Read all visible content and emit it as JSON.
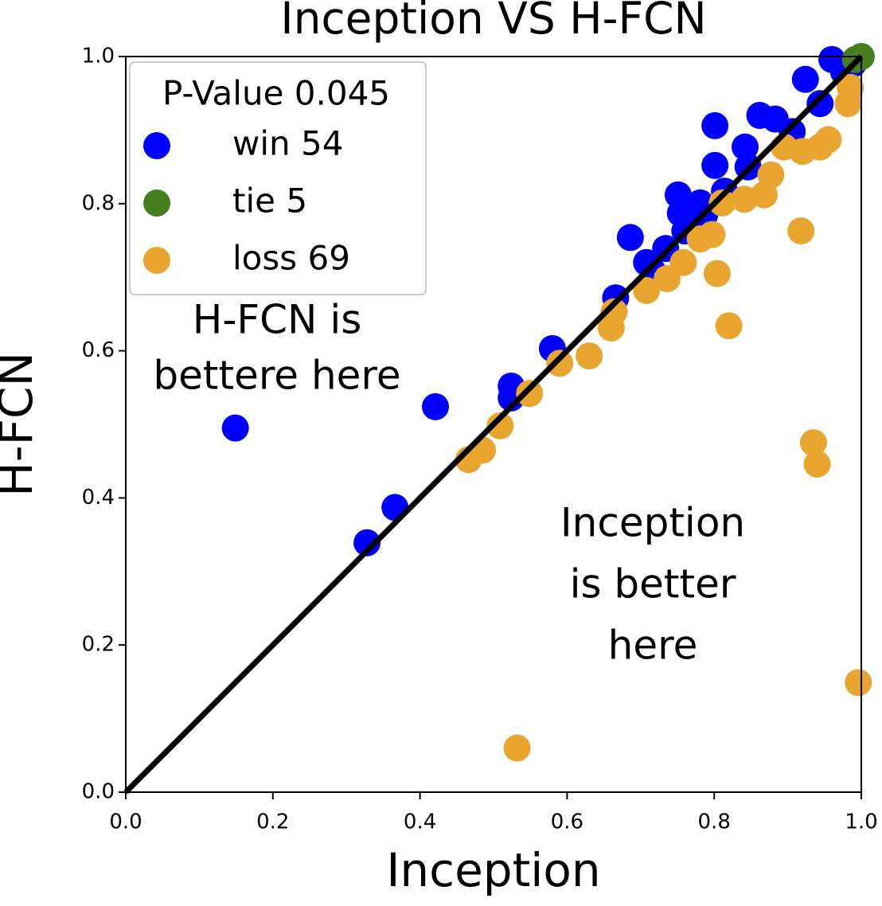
{
  "chart_data": {
    "type": "scatter",
    "title": "Inception VS H-FCN",
    "x_label": "Inception",
    "y_label": "H-FCN",
    "xlim": [
      0,
      1
    ],
    "ylim": [
      0,
      1
    ],
    "xticks": [
      {
        "value": 0,
        "label": "0.0"
      },
      0.2,
      0.4,
      0.6,
      0.8,
      {
        "value": 1,
        "label": "1.0"
      }
    ],
    "yticks": [
      {
        "value": 0,
        "label": "0.0"
      },
      0.2,
      0.4,
      0.6,
      0.8,
      {
        "value": 1,
        "label": "1.0"
      }
    ],
    "legend_title": "P-Value 0.045",
    "legend_position": "upper-left",
    "annotations": [
      [
        "H-FCN is",
        "bettere here"
      ],
      [
        "Inception",
        "is better",
        "here"
      ]
    ],
    "series": [
      {
        "name": "win 54",
        "color": "#0000ff",
        "x": [
          0.149,
          0.421,
          0.328,
          0.366,
          0.524,
          0.524,
          0.58,
          0.666,
          0.686,
          0.708,
          0.716,
          0.734,
          0.751,
          0.754,
          0.76,
          0.787,
          0.801,
          0.801,
          0.814,
          0.842,
          0.846,
          0.862,
          0.883,
          0.906,
          0.924,
          0.944,
          0.96,
          0.976,
          0.989,
          0.781
        ],
        "y": [
          0.495,
          0.524,
          0.339,
          0.387,
          0.552,
          0.536,
          0.603,
          0.672,
          0.754,
          0.72,
          0.709,
          0.739,
          0.812,
          0.787,
          0.763,
          0.785,
          0.906,
          0.852,
          0.817,
          0.877,
          0.85,
          0.92,
          0.915,
          0.898,
          0.969,
          0.936,
          0.996,
          0.979,
          0.99,
          0.801
        ]
      },
      {
        "name": "tie 5",
        "color": "#467d1e",
        "x": [
          0.992,
          1.0
        ],
        "y": [
          0.996,
          1.0
        ]
      },
      {
        "name": "loss 69",
        "color": "#e8a530",
        "x": [
          0.532,
          0.996,
          0.935,
          0.94,
          0.82,
          0.804,
          0.918,
          0.466,
          0.485,
          0.509,
          0.549,
          0.59,
          0.63,
          0.66,
          0.664,
          0.708,
          0.736,
          0.758,
          0.781,
          0.797,
          0.811,
          0.841,
          0.868,
          0.877,
          0.895,
          0.92,
          0.944,
          0.955,
          0.982,
          0.985
        ],
        "y": [
          0.06,
          0.149,
          0.475,
          0.446,
          0.634,
          0.705,
          0.763,
          0.452,
          0.465,
          0.498,
          0.542,
          0.583,
          0.593,
          0.631,
          0.653,
          0.682,
          0.698,
          0.72,
          0.752,
          0.758,
          0.801,
          0.806,
          0.812,
          0.839,
          0.877,
          0.871,
          0.877,
          0.887,
          0.936,
          0.958
        ]
      }
    ]
  }
}
